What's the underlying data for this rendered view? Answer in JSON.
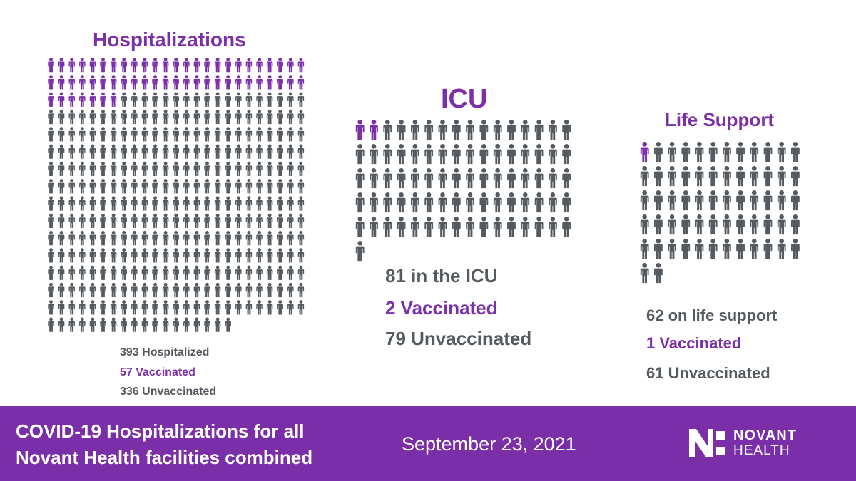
{
  "colors": {
    "vaccinated": "#7b2fa8",
    "unvaccinated": "#555a60",
    "footer_bg": "#7a2fa8"
  },
  "chart_data": [
    {
      "type": "pictogram",
      "title": "Hospitalizations",
      "total": 393,
      "vaccinated": 57,
      "unvaccinated": 336,
      "labels": {
        "total": "393 Hospitalized",
        "vaccinated": "57 Vaccinated",
        "unvaccinated": "336 Unvaccinated"
      }
    },
    {
      "type": "pictogram",
      "title": "ICU",
      "total": 81,
      "vaccinated": 2,
      "unvaccinated": 79,
      "labels": {
        "total": "81 in the ICU",
        "vaccinated": "2 Vaccinated",
        "unvaccinated": "79 Unvaccinated"
      }
    },
    {
      "type": "pictogram",
      "title": "Life Support",
      "total": 62,
      "vaccinated": 1,
      "unvaccinated": 61,
      "labels": {
        "total": "62 on life support",
        "vaccinated": "1 Vaccinated",
        "unvaccinated": "61 Unvaccinated"
      }
    }
  ],
  "footer": {
    "headline_line1": "COVID-19 Hospitalizations for all",
    "headline_line2": "Novant Health facilities combined",
    "date": "September 23, 2021"
  },
  "logo": {
    "line1": "NOVANT",
    "line2": "HEALTH",
    "icon": "novant-n-logo-icon"
  }
}
